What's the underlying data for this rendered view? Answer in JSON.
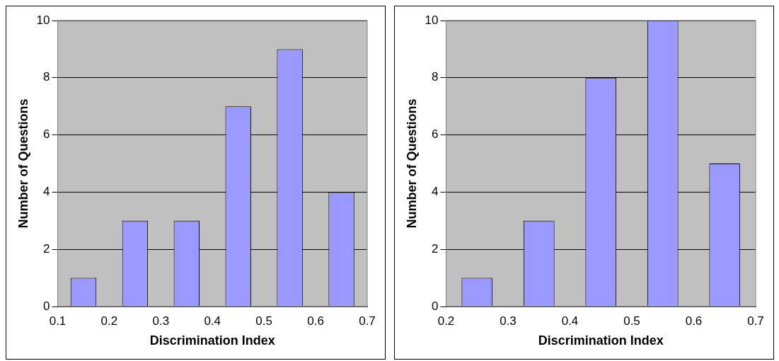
{
  "chart_data": [
    {
      "type": "bar",
      "xlabel": "Discrimination Index",
      "ylabel": "Number of Questions",
      "x": [
        0.15,
        0.25,
        0.35,
        0.45,
        0.55,
        0.65
      ],
      "values": [
        1,
        3,
        3,
        7,
        9,
        4
      ],
      "color": "#9999ff",
      "xlim": [
        0.1,
        0.7
      ],
      "xticks": [
        0.1,
        0.2,
        0.3,
        0.4,
        0.5,
        0.6,
        0.7
      ],
      "ylim": [
        0,
        10
      ],
      "yticks": [
        0,
        2,
        4,
        6,
        8,
        10
      ],
      "grid": "y",
      "legend": false
    },
    {
      "type": "bar",
      "xlabel": "Discrimination Index",
      "ylabel": "Number of Questions",
      "x": [
        0.25,
        0.35,
        0.45,
        0.55,
        0.65
      ],
      "values": [
        1,
        3,
        8,
        10,
        5
      ],
      "color": "#9999ff",
      "xlim": [
        0.2,
        0.7
      ],
      "xticks": [
        0.2,
        0.3,
        0.4,
        0.5,
        0.6,
        0.7
      ],
      "ylim": [
        0,
        10
      ],
      "yticks": [
        0,
        2,
        4,
        6,
        8,
        10
      ],
      "grid": "y",
      "legend": false
    }
  ]
}
